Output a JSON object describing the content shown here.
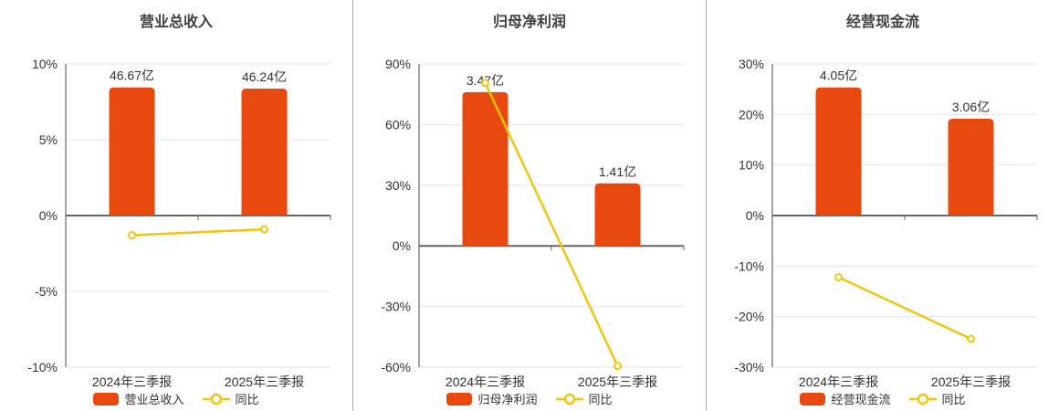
{
  "colors": {
    "bar": "#e8490f",
    "line": "#f2c50f",
    "grid": "#e2e6f2",
    "zero_axis": "#666666",
    "axis": "#666666",
    "text": "#333333",
    "title": "#404040",
    "divider": "#aeaea8",
    "background": "#ffffff"
  },
  "chart_data": [
    {
      "type": "bar",
      "title": "营业总收入",
      "categories": [
        "2024年三季报",
        "2025年三季报"
      ],
      "series": [
        {
          "name": "营业总收入",
          "type": "bar",
          "unit": "亿",
          "values": [
            46.67,
            46.24
          ],
          "labels": [
            "46.67亿",
            "46.24亿"
          ]
        },
        {
          "name": "同比",
          "type": "line",
          "unit": "%",
          "values": [
            -1.3,
            -0.9
          ]
        }
      ],
      "yaxis": {
        "min": -10,
        "max": 10,
        "step": 5,
        "tick_suffix": "%"
      },
      "layout": {
        "grid": true,
        "legend_position": "bottom",
        "bar_top_frac_of_ymax": 0.845
      }
    },
    {
      "type": "bar",
      "title": "归母净利润",
      "categories": [
        "2024年三季报",
        "2025年三季报"
      ],
      "series": [
        {
          "name": "归母净利润",
          "type": "bar",
          "unit": "亿",
          "values": [
            3.47,
            1.41
          ],
          "labels": [
            "3.47亿",
            "1.41亿"
          ]
        },
        {
          "name": "同比",
          "type": "line",
          "unit": "%",
          "values": [
            80.6,
            -59.4
          ]
        }
      ],
      "yaxis": {
        "min": -60,
        "max": 90,
        "step": 30,
        "tick_suffix": "%"
      },
      "layout": {
        "grid": true,
        "legend_position": "bottom",
        "bar_top_frac_of_ymax": 0.845
      }
    },
    {
      "type": "bar",
      "title": "经营现金流",
      "categories": [
        "2024年三季报",
        "2025年三季报"
      ],
      "series": [
        {
          "name": "经营现金流",
          "type": "bar",
          "unit": "亿",
          "values": [
            4.05,
            3.06
          ],
          "labels": [
            "4.05亿",
            "3.06亿"
          ]
        },
        {
          "name": "同比",
          "type": "line",
          "unit": "%",
          "values": [
            -12.2,
            -24.4
          ]
        }
      ],
      "yaxis": {
        "min": -30,
        "max": 30,
        "step": 10,
        "tick_suffix": "%"
      },
      "layout": {
        "grid": true,
        "legend_position": "bottom",
        "bar_top_frac_of_ymax": 0.845
      }
    }
  ]
}
